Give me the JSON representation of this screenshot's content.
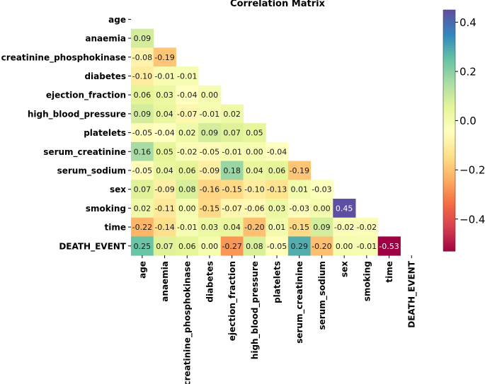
{
  "chart_data": {
    "type": "heatmap",
    "title": "Correlation Matrix",
    "xlabel": "",
    "ylabel": "",
    "mask": "upper-triangle-including-diagonal",
    "colormap": "Spectral",
    "vmin": -0.53,
    "vmax": 0.45,
    "colorbar_ticks": [
      "0.4",
      "0.2",
      "0.0",
      "−0.2",
      "−0.4"
    ],
    "colorbar_tick_values": [
      0.4,
      0.2,
      0.0,
      -0.2,
      -0.4
    ],
    "variables": [
      "age",
      "anaemia",
      "creatinine_phosphokinase",
      "diabetes",
      "ejection_fraction",
      "high_blood_pressure",
      "platelets",
      "serum_creatinine",
      "serum_sodium",
      "sex",
      "smoking",
      "time",
      "DEATH_EVENT"
    ],
    "lower_triangle": [
      [],
      [
        0.09
      ],
      [
        -0.08,
        -0.19
      ],
      [
        -0.1,
        -0.01,
        -0.01
      ],
      [
        0.06,
        0.03,
        -0.04,
        -0.0
      ],
      [
        0.09,
        0.04,
        -0.07,
        -0.01,
        0.02
      ],
      [
        -0.05,
        -0.04,
        0.02,
        0.09,
        0.07,
        0.05
      ],
      [
        0.16,
        0.05,
        -0.02,
        -0.05,
        -0.01,
        -0.0,
        -0.04
      ],
      [
        -0.05,
        0.04,
        0.06,
        -0.09,
        0.18,
        0.04,
        0.06,
        -0.19
      ],
      [
        0.07,
        -0.09,
        0.08,
        -0.16,
        -0.15,
        -0.1,
        -0.13,
        0.01,
        -0.03
      ],
      [
        0.02,
        -0.11,
        0.0,
        -0.15,
        -0.07,
        -0.06,
        0.03,
        -0.03,
        0.0,
        0.45
      ],
      [
        -0.22,
        -0.14,
        -0.01,
        0.03,
        0.04,
        -0.2,
        0.01,
        -0.15,
        0.09,
        -0.02,
        -0.02
      ],
      [
        0.25,
        0.07,
        0.06,
        -0.0,
        -0.27,
        0.08,
        -0.05,
        0.29,
        -0.2,
        -0.0,
        -0.01,
        -0.53
      ]
    ]
  }
}
